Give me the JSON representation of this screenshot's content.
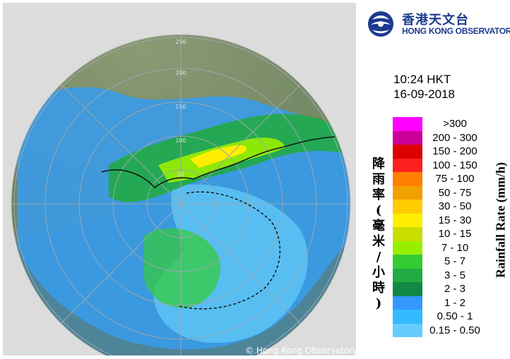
{
  "logo": {
    "chinese_name": "香港天文台",
    "english_name": "HONG KONG OBSERVATORY",
    "icon": "observatory-emblem-icon"
  },
  "time": "10:24 HKT",
  "date": "16-09-2018",
  "copyright": "© Hong Kong Observatory",
  "legend": {
    "title_chinese": "降雨率(毫米/小時)",
    "title_english": "Rainfall Rate (mm/h)",
    "items": [
      {
        "label": ">300",
        "color": "#ff00ff"
      },
      {
        "label": "200 - 300",
        "color": "#cc0099"
      },
      {
        "label": "150 - 200",
        "color": "#dd0000"
      },
      {
        "label": "100 - 150",
        "color": "#ff2020"
      },
      {
        "label": "75 - 100",
        "color": "#ff7f00"
      },
      {
        "label": "50 - 75",
        "color": "#f0a000"
      },
      {
        "label": "30 - 50",
        "color": "#ffcc00"
      },
      {
        "label": "15 - 30",
        "color": "#ffee00"
      },
      {
        "label": "10 - 15",
        "color": "#ccdd00"
      },
      {
        "label": "7 - 10",
        "color": "#99ee00"
      },
      {
        "label": "5 - 7",
        "color": "#33cc33"
      },
      {
        "label": "3 - 5",
        "color": "#22aa44"
      },
      {
        "label": "2 - 3",
        "color": "#118844"
      },
      {
        "label": "1 - 2",
        "color": "#3399ff"
      },
      {
        "label": "0.50 - 1",
        "color": "#33bbff"
      },
      {
        "label": "0.15 - 0.50",
        "color": "#66ccff"
      }
    ]
  },
  "radar": {
    "range_ring_labels": [
      "256",
      "200",
      "150",
      "100",
      "50"
    ],
    "land_color": "#7c8f6a",
    "sea_color": "#4e8497",
    "outside_color": "#d9d9d9"
  }
}
